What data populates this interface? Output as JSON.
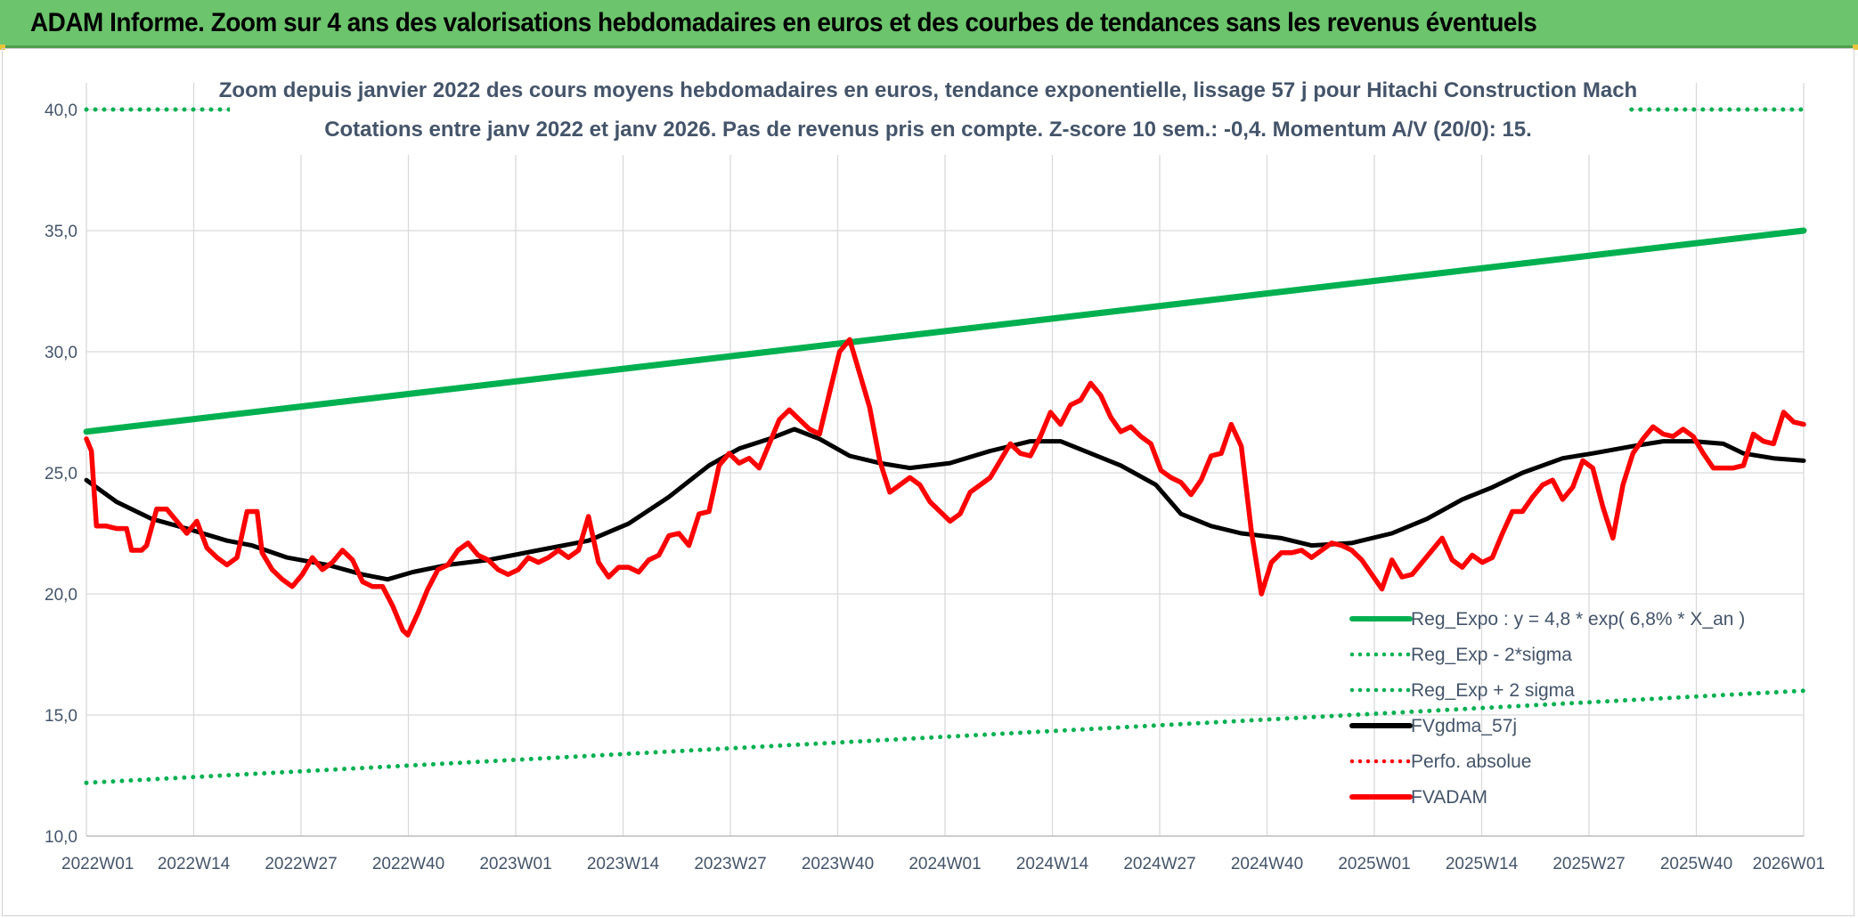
{
  "header": {
    "title": "ADAM Informe. Zoom sur 4 ans des valorisations hebdomadaires en euros et des courbes de tendances sans les revenus éventuels"
  },
  "colors": {
    "header_bg": "#6cc46c",
    "regression": "#00b050",
    "smoothing": "#000000",
    "price": "#ff0000",
    "axis_text": "#44546a",
    "grid": "#d9d9d9"
  },
  "chart_data": {
    "type": "line",
    "title": "Zoom depuis janvier 2022 des cours moyens hebdomadaires en euros, tendance exponentielle, lissage 57 j pour Hitachi Construction Mach",
    "subtitle": "Cotations entre janv 2022 et janv 2026. Pas de revenus pris en compte. Z-score 10 sem.: -0,4. Momentum A/V (20/0): 15.",
    "xlabel": "",
    "ylabel": "",
    "ylim": [
      10,
      40
    ],
    "y_ticks": [
      "10,0",
      "15,0",
      "20,0",
      "25,0",
      "30,0",
      "35,0",
      "40,0"
    ],
    "x_ticks": [
      "2022W01",
      "2022W14",
      "2022W27",
      "2022W40",
      "2023W01",
      "2023W14",
      "2023W27",
      "2023W40",
      "2024W01",
      "2024W14",
      "2024W27",
      "2024W40",
      "2025W01",
      "2025W14",
      "2025W27",
      "2025W40",
      "2026W01"
    ],
    "legend_position": "bottom-right",
    "series": [
      {
        "name": "Reg_Expo : y = 4,8 * exp( 6,8% *  X_an )",
        "style": "solid",
        "color": "#00b050",
        "points": [
          [
            0,
            26.7
          ],
          [
            208,
            35.0
          ]
        ]
      },
      {
        "name": "Reg_Exp - 2*sigma",
        "style": "dotted",
        "color": "#00b050",
        "points": [
          [
            0,
            12.2
          ],
          [
            208,
            16.0
          ]
        ]
      },
      {
        "name": "Reg_Exp + 2 sigma",
        "style": "dotted",
        "color": "#00b050",
        "points": [
          [
            0,
            40.0
          ],
          [
            20,
            40.0
          ],
          [
            185,
            40.0
          ],
          [
            208,
            40.0
          ]
        ],
        "gap": [
          20,
          185
        ]
      },
      {
        "name": "FVgdma_57j",
        "style": "solid",
        "color": "#000000",
        "points": [
          [
            0,
            24.7
          ],
          [
            6,
            23.8
          ],
          [
            13,
            23.1
          ],
          [
            20,
            22.7
          ],
          [
            28,
            22.2
          ],
          [
            33,
            22.0
          ],
          [
            40,
            21.5
          ],
          [
            48,
            21.2
          ],
          [
            55,
            20.8
          ],
          [
            60,
            20.6
          ],
          [
            65,
            20.9
          ],
          [
            72,
            21.2
          ],
          [
            80,
            21.4
          ],
          [
            90,
            21.8
          ],
          [
            100,
            22.2
          ],
          [
            108,
            22.9
          ],
          [
            116,
            24.0
          ],
          [
            124,
            25.3
          ],
          [
            130,
            26.0
          ],
          [
            136,
            26.4
          ],
          [
            141,
            26.8
          ],
          [
            146,
            26.4
          ],
          [
            152,
            25.7
          ],
          [
            158,
            25.4
          ],
          [
            164,
            25.2
          ],
          [
            172,
            25.4
          ],
          [
            180,
            25.9
          ],
          [
            188,
            26.3
          ],
          [
            194,
            26.3
          ],
          [
            200,
            25.8
          ],
          [
            206,
            25.3
          ],
          [
            213,
            24.5
          ],
          [
            218,
            23.3
          ],
          [
            224,
            22.8
          ],
          [
            230,
            22.5
          ],
          [
            238,
            22.3
          ],
          [
            244,
            22.0
          ],
          [
            252,
            22.1
          ],
          [
            260,
            22.5
          ],
          [
            267,
            23.1
          ],
          [
            274,
            23.9
          ],
          [
            280,
            24.4
          ],
          [
            286,
            25.0
          ],
          [
            294,
            25.6
          ],
          [
            300,
            25.8
          ],
          [
            308,
            26.1
          ],
          [
            314,
            26.3
          ],
          [
            320,
            26.3
          ],
          [
            326,
            26.2
          ],
          [
            330,
            25.8
          ],
          [
            336,
            25.6
          ],
          [
            342,
            25.5
          ]
        ]
      },
      {
        "name": "Perfo. absolue",
        "style": "dotted",
        "color": "#ff0000",
        "points": []
      },
      {
        "name": "FVADAM",
        "style": "solid",
        "color": "#ff0000",
        "points": [
          [
            0,
            26.4
          ],
          [
            1,
            25.9
          ],
          [
            2,
            22.8
          ],
          [
            4,
            22.8
          ],
          [
            6,
            22.7
          ],
          [
            8,
            22.7
          ],
          [
            9,
            21.8
          ],
          [
            11,
            21.8
          ],
          [
            12,
            22.0
          ],
          [
            14,
            23.5
          ],
          [
            16,
            23.5
          ],
          [
            18,
            23.0
          ],
          [
            20,
            22.5
          ],
          [
            22,
            23.0
          ],
          [
            24,
            21.9
          ],
          [
            26,
            21.5
          ],
          [
            28,
            21.2
          ],
          [
            30,
            21.5
          ],
          [
            32,
            23.4
          ],
          [
            34,
            23.4
          ],
          [
            35,
            21.7
          ],
          [
            37,
            21.0
          ],
          [
            39,
            20.6
          ],
          [
            41,
            20.3
          ],
          [
            43,
            20.8
          ],
          [
            45,
            21.5
          ],
          [
            47,
            21.0
          ],
          [
            49,
            21.3
          ],
          [
            51,
            21.8
          ],
          [
            53,
            21.4
          ],
          [
            55,
            20.5
          ],
          [
            57,
            20.3
          ],
          [
            59,
            20.3
          ],
          [
            61,
            19.5
          ],
          [
            63,
            18.5
          ],
          [
            64,
            18.3
          ],
          [
            66,
            19.2
          ],
          [
            68,
            20.2
          ],
          [
            70,
            21.0
          ],
          [
            72,
            21.2
          ],
          [
            74,
            21.8
          ],
          [
            76,
            22.1
          ],
          [
            78,
            21.6
          ],
          [
            80,
            21.4
          ],
          [
            82,
            21.0
          ],
          [
            84,
            20.8
          ],
          [
            86,
            21.0
          ],
          [
            88,
            21.5
          ],
          [
            90,
            21.3
          ],
          [
            92,
            21.5
          ],
          [
            94,
            21.8
          ],
          [
            96,
            21.5
          ],
          [
            98,
            21.8
          ],
          [
            100,
            23.2
          ],
          [
            102,
            21.3
          ],
          [
            104,
            20.7
          ],
          [
            106,
            21.1
          ],
          [
            108,
            21.1
          ],
          [
            110,
            20.9
          ],
          [
            112,
            21.4
          ],
          [
            114,
            21.6
          ],
          [
            116,
            22.4
          ],
          [
            118,
            22.5
          ],
          [
            120,
            22.0
          ],
          [
            122,
            23.3
          ],
          [
            124,
            23.4
          ],
          [
            126,
            25.3
          ],
          [
            128,
            25.8
          ],
          [
            130,
            25.4
          ],
          [
            132,
            25.6
          ],
          [
            134,
            25.2
          ],
          [
            136,
            26.2
          ],
          [
            138,
            27.2
          ],
          [
            140,
            27.6
          ],
          [
            142,
            27.2
          ],
          [
            144,
            26.8
          ],
          [
            146,
            26.6
          ],
          [
            148,
            28.3
          ],
          [
            150,
            30.0
          ],
          [
            152,
            30.5
          ],
          [
            154,
            29.1
          ],
          [
            156,
            27.7
          ],
          [
            158,
            25.5
          ],
          [
            160,
            24.2
          ],
          [
            162,
            24.5
          ],
          [
            164,
            24.8
          ],
          [
            166,
            24.5
          ],
          [
            168,
            23.8
          ],
          [
            170,
            23.4
          ],
          [
            172,
            23.0
          ],
          [
            174,
            23.3
          ],
          [
            176,
            24.2
          ],
          [
            178,
            24.5
          ],
          [
            180,
            24.8
          ],
          [
            182,
            25.5
          ],
          [
            184,
            26.2
          ],
          [
            186,
            25.8
          ],
          [
            188,
            25.7
          ],
          [
            190,
            26.5
          ],
          [
            192,
            27.5
          ],
          [
            194,
            27.0
          ],
          [
            196,
            27.8
          ],
          [
            198,
            28.0
          ],
          [
            200,
            28.7
          ],
          [
            202,
            28.2
          ],
          [
            204,
            27.3
          ],
          [
            206,
            26.7
          ],
          [
            208,
            26.9
          ],
          [
            210,
            26.5
          ],
          [
            212,
            26.2
          ],
          [
            214,
            25.1
          ],
          [
            216,
            24.8
          ],
          [
            218,
            24.6
          ],
          [
            220,
            24.1
          ],
          [
            222,
            24.7
          ],
          [
            224,
            25.7
          ],
          [
            226,
            25.8
          ],
          [
            228,
            27.0
          ],
          [
            230,
            26.1
          ],
          [
            232,
            22.6
          ],
          [
            234,
            20.0
          ],
          [
            236,
            21.3
          ],
          [
            238,
            21.7
          ],
          [
            240,
            21.7
          ],
          [
            242,
            21.8
          ],
          [
            244,
            21.5
          ],
          [
            246,
            21.8
          ],
          [
            248,
            22.1
          ],
          [
            250,
            22.0
          ],
          [
            252,
            21.8
          ],
          [
            254,
            21.4
          ],
          [
            256,
            20.8
          ],
          [
            258,
            20.2
          ],
          [
            260,
            21.4
          ],
          [
            262,
            20.7
          ],
          [
            264,
            20.8
          ],
          [
            266,
            21.3
          ],
          [
            268,
            21.8
          ],
          [
            270,
            22.3
          ],
          [
            272,
            21.4
          ],
          [
            274,
            21.1
          ],
          [
            276,
            21.6
          ],
          [
            278,
            21.3
          ],
          [
            280,
            21.5
          ],
          [
            282,
            22.5
          ],
          [
            284,
            23.4
          ],
          [
            286,
            23.4
          ],
          [
            288,
            24.0
          ],
          [
            290,
            24.5
          ],
          [
            292,
            24.7
          ],
          [
            294,
            23.9
          ],
          [
            296,
            24.4
          ],
          [
            298,
            25.5
          ],
          [
            300,
            25.2
          ],
          [
            302,
            23.6
          ],
          [
            304,
            22.3
          ],
          [
            306,
            24.5
          ],
          [
            308,
            25.8
          ],
          [
            310,
            26.4
          ],
          [
            312,
            26.9
          ],
          [
            314,
            26.6
          ],
          [
            316,
            26.5
          ],
          [
            318,
            26.8
          ],
          [
            320,
            26.5
          ],
          [
            322,
            25.8
          ],
          [
            324,
            25.2
          ],
          [
            326,
            25.2
          ],
          [
            328,
            25.2
          ],
          [
            330,
            25.3
          ],
          [
            332,
            26.6
          ],
          [
            334,
            26.3
          ],
          [
            336,
            26.2
          ],
          [
            338,
            27.5
          ],
          [
            340,
            27.1
          ],
          [
            342,
            27.0
          ]
        ]
      }
    ]
  }
}
